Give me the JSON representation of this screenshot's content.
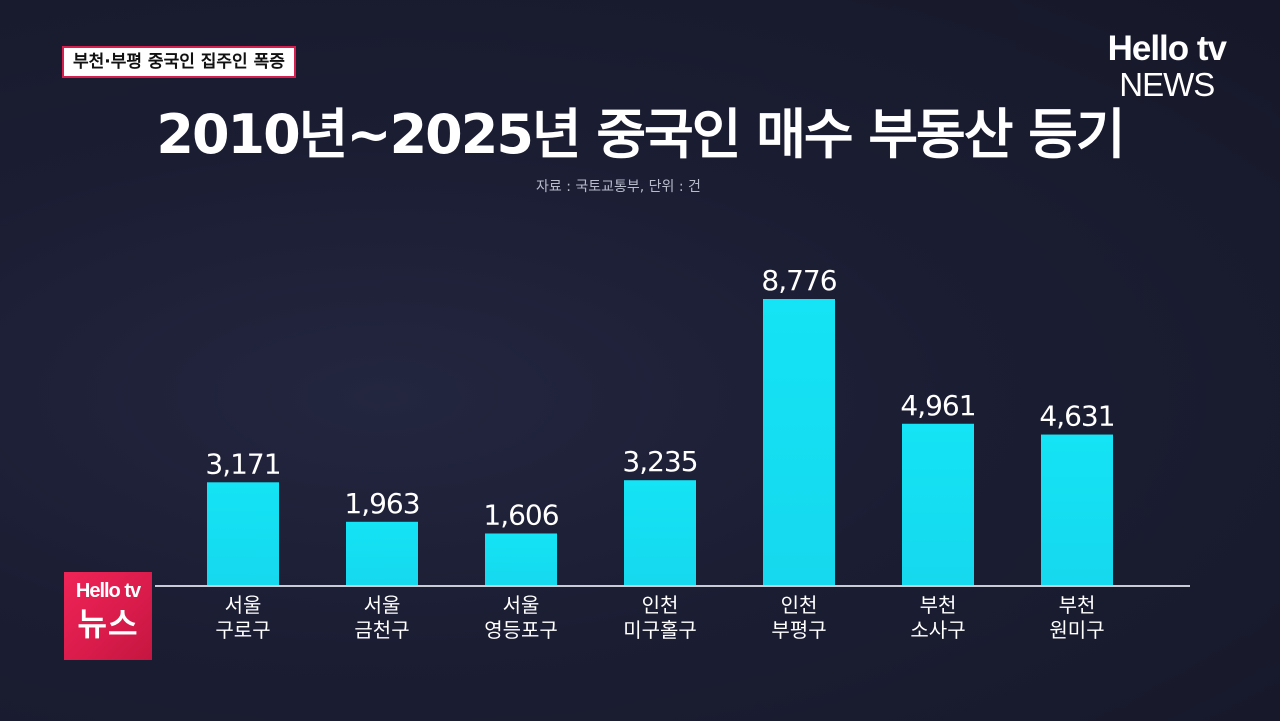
{
  "topic": "부천·부평 중국인 집주인 폭증",
  "logo_top": {
    "line1": "Hello tv",
    "line2": "NEWS"
  },
  "logo_bottom": {
    "line1": "Hello tv",
    "line2": "뉴스"
  },
  "colors": {
    "background": "#191b30",
    "bar": "#15dff2",
    "topic_border": "#d61f4e",
    "logo_bottom": "#e21f50"
  },
  "chart_data": {
    "type": "bar",
    "title": "2010년~2025년 중국인 매수 부동산 등기",
    "subtitle": "자료 : 국토교통부, 단위 : 건",
    "categories": [
      [
        "서울",
        "구로구"
      ],
      [
        "서울",
        "금천구"
      ],
      [
        "서울",
        "영등포구"
      ],
      [
        "인천",
        "미구홀구"
      ],
      [
        "인천",
        "부평구"
      ],
      [
        "부천",
        "소사구"
      ],
      [
        "부천",
        "원미구"
      ]
    ],
    "values": [
      3171,
      1963,
      1606,
      3235,
      8776,
      4961,
      4631
    ],
    "value_labels": [
      "3,171",
      "1,963",
      "1,606",
      "3,235",
      "8,776",
      "4,961",
      "4,631"
    ],
    "grid": false,
    "legend": "none"
  }
}
